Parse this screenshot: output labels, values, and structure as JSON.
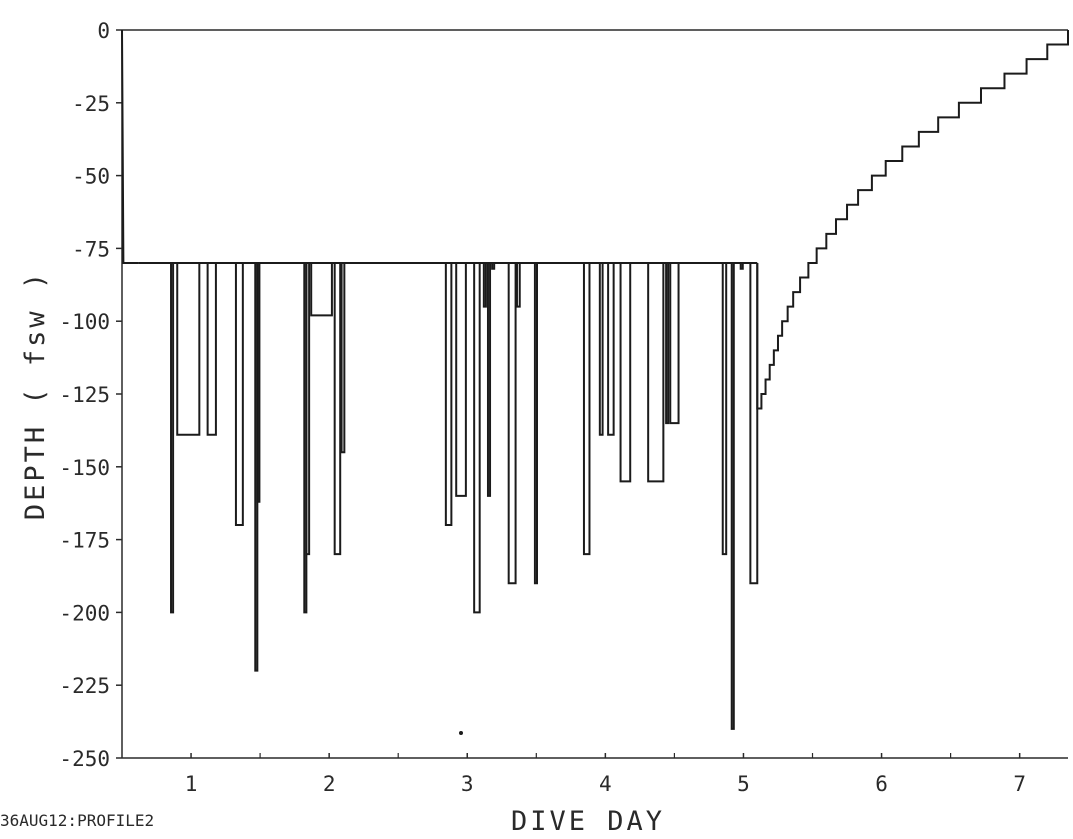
{
  "top_title_partial": "",
  "footer_id": "36AUG12:PROFILE2",
  "chart_data": {
    "type": "line",
    "title": "",
    "xlabel": "DIVE DAY",
    "ylabel": "DEPTH ( fsw )",
    "xlim": [
      0.5,
      7.35
    ],
    "ylim": [
      -250,
      0
    ],
    "x_ticks": [
      1,
      2,
      3,
      4,
      5,
      6,
      7
    ],
    "x_tick_labels": [
      "1",
      "2",
      "3",
      "4",
      "5",
      "6",
      "7"
    ],
    "y_ticks": [
      0,
      -25,
      -50,
      -75,
      -100,
      -125,
      -150,
      -175,
      -200,
      -225,
      -250
    ],
    "y_tick_labels": [
      "0",
      "-25",
      "-50",
      "-75",
      "-100",
      "-125",
      "-150",
      "-175",
      "-200",
      "-225",
      "-250"
    ],
    "grid": false,
    "legend": "none",
    "line_color": "#1b1b1b",
    "descent": [
      [
        0.5,
        0
      ],
      [
        0.51,
        -80
      ],
      [
        0.62,
        -80
      ]
    ],
    "excursions": [
      {
        "start": 0.855,
        "end": 0.87,
        "depth": -200
      },
      {
        "start": 0.9,
        "end": 1.06,
        "depth": -139
      },
      {
        "start": 1.12,
        "end": 1.18,
        "depth": -139
      },
      {
        "start": 1.325,
        "end": 1.375,
        "depth": -170
      },
      {
        "start": 1.465,
        "end": 1.48,
        "depth": -220
      },
      {
        "start": 1.48,
        "end": 1.495,
        "depth": -162
      },
      {
        "start": 1.82,
        "end": 1.835,
        "depth": -200
      },
      {
        "start": 1.835,
        "end": 1.855,
        "depth": -180
      },
      {
        "start": 1.87,
        "end": 2.02,
        "depth": -98
      },
      {
        "start": 2.04,
        "end": 2.08,
        "depth": -180
      },
      {
        "start": 2.09,
        "end": 2.11,
        "depth": -145
      },
      {
        "start": 2.845,
        "end": 2.885,
        "depth": -170
      },
      {
        "start": 2.92,
        "end": 2.99,
        "depth": -160
      },
      {
        "start": 3.05,
        "end": 3.09,
        "depth": -200
      },
      {
        "start": 3.12,
        "end": 3.135,
        "depth": -95
      },
      {
        "start": 3.15,
        "end": 3.165,
        "depth": -160
      },
      {
        "start": 3.18,
        "end": 3.195,
        "depth": -82
      },
      {
        "start": 3.3,
        "end": 3.35,
        "depth": -190
      },
      {
        "start": 3.36,
        "end": 3.38,
        "depth": -95
      },
      {
        "start": 3.49,
        "end": 3.505,
        "depth": -190
      },
      {
        "start": 3.845,
        "end": 3.885,
        "depth": -180
      },
      {
        "start": 3.96,
        "end": 3.98,
        "depth": -139
      },
      {
        "start": 4.02,
        "end": 4.06,
        "depth": -139
      },
      {
        "start": 4.11,
        "end": 4.18,
        "depth": -155
      },
      {
        "start": 4.31,
        "end": 4.42,
        "depth": -155
      },
      {
        "start": 4.44,
        "end": 4.455,
        "depth": -135
      },
      {
        "start": 4.47,
        "end": 4.53,
        "depth": -135
      },
      {
        "start": 4.85,
        "end": 4.875,
        "depth": -180
      },
      {
        "start": 4.915,
        "end": 4.93,
        "depth": -240
      },
      {
        "start": 4.98,
        "end": 4.995,
        "depth": -82
      },
      {
        "start": 5.05,
        "end": 5.1,
        "depth": -190
      }
    ],
    "saturation_end": 5.1,
    "decompression_start_depth": -130,
    "decompression": [
      [
        5.1,
        -130
      ],
      [
        5.13,
        -125
      ],
      [
        5.16,
        -120
      ],
      [
        5.19,
        -115
      ],
      [
        5.22,
        -110
      ],
      [
        5.25,
        -105
      ],
      [
        5.28,
        -100
      ],
      [
        5.32,
        -95
      ],
      [
        5.36,
        -90
      ],
      [
        5.41,
        -85
      ],
      [
        5.47,
        -80
      ],
      [
        5.53,
        -75
      ],
      [
        5.6,
        -70
      ],
      [
        5.67,
        -65
      ],
      [
        5.75,
        -60
      ],
      [
        5.83,
        -55
      ],
      [
        5.93,
        -50
      ],
      [
        6.03,
        -45
      ],
      [
        6.15,
        -40
      ],
      [
        6.27,
        -35
      ],
      [
        6.41,
        -30
      ],
      [
        6.56,
        -25
      ],
      [
        6.72,
        -20
      ],
      [
        6.89,
        -15
      ],
      [
        7.05,
        -10
      ],
      [
        7.2,
        -5
      ],
      [
        7.35,
        0
      ]
    ]
  }
}
